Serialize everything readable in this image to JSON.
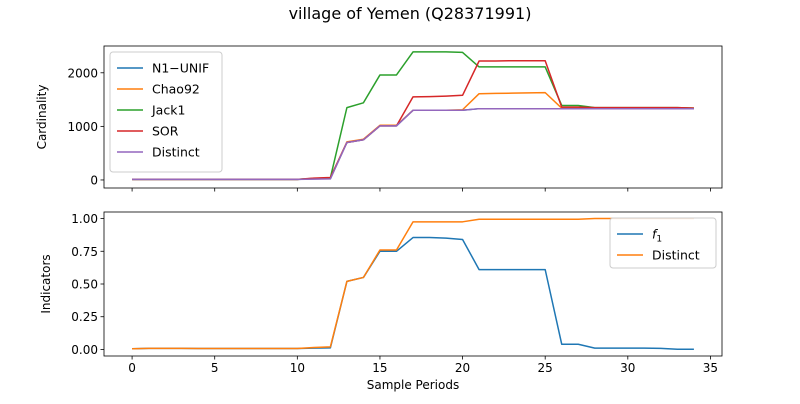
{
  "figure": {
    "title": "village of Yemen (Q28371991)"
  },
  "colors": {
    "blue": "#1f77b4",
    "orange": "#ff7f0e",
    "green": "#2ca02c",
    "red": "#d62728",
    "purple": "#9467bd",
    "axis": "#000000",
    "legend_border": "#cccccc"
  },
  "chart_data": [
    {
      "type": "line",
      "title": "",
      "xlabel": "",
      "ylabel": "Cardinality",
      "xlim": [
        -1.7,
        35.7
      ],
      "ylim": [
        -150,
        2500
      ],
      "xticks": [
        0,
        5,
        10,
        15,
        20,
        25,
        30,
        35
      ],
      "yticks": [
        0,
        1000,
        2000
      ],
      "ytick_labels": [
        "0",
        "1000",
        "2000"
      ],
      "show_xtick_labels": false,
      "grid": false,
      "legend_position": "top-left",
      "x": [
        0,
        1,
        2,
        3,
        4,
        5,
        6,
        7,
        8,
        9,
        10,
        11,
        12,
        13,
        14,
        15,
        16,
        17,
        18,
        19,
        20,
        21,
        22,
        23,
        24,
        25,
        26,
        27,
        28,
        29,
        30,
        31,
        32,
        33,
        34
      ],
      "series": [
        {
          "name": "N1−UNIF",
          "color": "#1f77b4",
          "values": [
            10,
            10,
            10,
            10,
            10,
            10,
            10,
            10,
            10,
            10,
            10,
            20,
            25,
            700,
            750,
            1010,
            1010,
            1300,
            1300,
            1300,
            1300,
            1330,
            1330,
            1330,
            1330,
            1330,
            1330,
            1330,
            1330,
            1330,
            1330,
            1330,
            1330,
            1330,
            1330
          ]
        },
        {
          "name": "Chao92",
          "color": "#ff7f0e",
          "values": [
            10,
            10,
            10,
            10,
            10,
            10,
            10,
            10,
            10,
            10,
            10,
            25,
            35,
            710,
            760,
            1020,
            1020,
            1300,
            1300,
            1300,
            1310,
            1610,
            1615,
            1620,
            1625,
            1630,
            1340,
            1340,
            1340,
            1340,
            1340,
            1340,
            1340,
            1340,
            1340
          ]
        },
        {
          "name": "Jack1",
          "color": "#2ca02c",
          "values": [
            10,
            10,
            10,
            10,
            10,
            10,
            10,
            10,
            10,
            10,
            10,
            30,
            40,
            1350,
            1440,
            1960,
            1960,
            2390,
            2390,
            2390,
            2380,
            2110,
            2110,
            2110,
            2110,
            2110,
            1390,
            1390,
            1350,
            1350,
            1350,
            1350,
            1350,
            1350,
            1340
          ]
        },
        {
          "name": "SOR",
          "color": "#d62728",
          "values": [
            10,
            10,
            10,
            10,
            10,
            10,
            10,
            10,
            10,
            10,
            10,
            35,
            45,
            700,
            750,
            1010,
            1010,
            1550,
            1555,
            1565,
            1580,
            2220,
            2220,
            2225,
            2225,
            2225,
            1360,
            1360,
            1350,
            1350,
            1350,
            1350,
            1350,
            1350,
            1340
          ]
        },
        {
          "name": "Distinct",
          "color": "#9467bd",
          "values": [
            10,
            10,
            10,
            10,
            10,
            10,
            10,
            10,
            10,
            10,
            10,
            15,
            20,
            700,
            750,
            1010,
            1010,
            1300,
            1300,
            1300,
            1300,
            1330,
            1330,
            1330,
            1330,
            1330,
            1330,
            1330,
            1330,
            1330,
            1330,
            1330,
            1330,
            1330,
            1330
          ]
        }
      ]
    },
    {
      "type": "line",
      "title": "",
      "xlabel": "Sample Periods",
      "ylabel": "Indicators",
      "xlim": [
        -1.7,
        35.7
      ],
      "ylim": [
        -0.05,
        1.05
      ],
      "xticks": [
        0,
        5,
        10,
        15,
        20,
        25,
        30,
        35
      ],
      "xtick_labels": [
        "0",
        "5",
        "10",
        "15",
        "20",
        "25",
        "30",
        "35"
      ],
      "yticks": [
        0,
        0.25,
        0.5,
        0.75,
        1.0
      ],
      "ytick_labels": [
        "0.00",
        "0.25",
        "0.50",
        "0.75",
        "1.00"
      ],
      "show_xtick_labels": true,
      "grid": false,
      "legend_position": "top-right",
      "x": [
        0,
        1,
        2,
        3,
        4,
        5,
        6,
        7,
        8,
        9,
        10,
        11,
        12,
        13,
        14,
        15,
        16,
        17,
        18,
        19,
        20,
        21,
        22,
        23,
        24,
        25,
        26,
        27,
        28,
        29,
        30,
        31,
        32,
        33,
        34
      ],
      "series": [
        {
          "name": "f₁",
          "legend_italic_f_subscript": "1",
          "color": "#1f77b4",
          "values": [
            0.005,
            0.008,
            0.008,
            0.008,
            0.007,
            0.007,
            0.007,
            0.007,
            0.007,
            0.007,
            0.007,
            0.01,
            0.012,
            0.52,
            0.55,
            0.75,
            0.75,
            0.855,
            0.855,
            0.85,
            0.84,
            0.61,
            0.61,
            0.61,
            0.61,
            0.61,
            0.04,
            0.04,
            0.01,
            0.01,
            0.01,
            0.01,
            0.008,
            0.002,
            0.002
          ]
        },
        {
          "name": "Distinct",
          "color": "#ff7f0e",
          "values": [
            0.005,
            0.008,
            0.008,
            0.008,
            0.007,
            0.007,
            0.007,
            0.007,
            0.007,
            0.007,
            0.007,
            0.015,
            0.02,
            0.52,
            0.55,
            0.76,
            0.76,
            0.975,
            0.975,
            0.975,
            0.975,
            0.995,
            0.995,
            0.995,
            0.995,
            0.995,
            0.995,
            0.995,
            1.0,
            1.0,
            1.0,
            1.0,
            1.0,
            1.0,
            1.0
          ]
        }
      ]
    }
  ]
}
